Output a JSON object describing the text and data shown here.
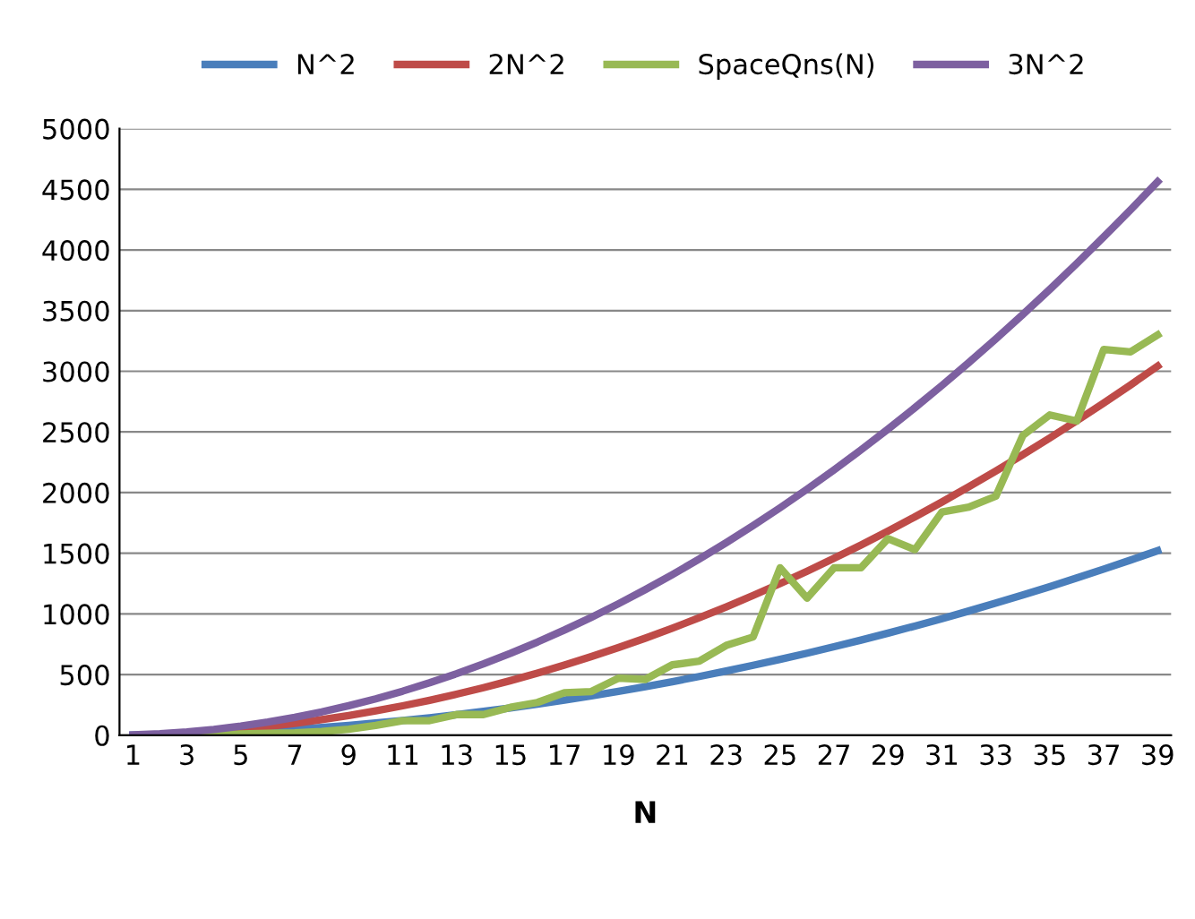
{
  "chart_data": {
    "type": "line",
    "xlabel": "N",
    "categories": [
      "1",
      null,
      "3",
      null,
      "5",
      null,
      "7",
      null,
      "9",
      null,
      "11",
      null,
      "13",
      null,
      "15",
      null,
      "17",
      null,
      "19",
      null,
      "21",
      null,
      "23",
      null,
      "25",
      null,
      "27",
      null,
      "29",
      null,
      "31",
      null,
      "33",
      null,
      "35",
      null,
      "37",
      null,
      "39"
    ],
    "series": [
      {
        "name": "N^2",
        "color": "#4a7ebb",
        "values": [
          1,
          4,
          9,
          16,
          25,
          36,
          49,
          64,
          81,
          100,
          121,
          144,
          169,
          196,
          225,
          256,
          289,
          324,
          361,
          400,
          441,
          484,
          529,
          576,
          625,
          676,
          729,
          784,
          841,
          900,
          961,
          1024,
          1089,
          1156,
          1225,
          1296,
          1369,
          1444,
          1521
        ]
      },
      {
        "name": "2N^2",
        "color": "#be4b48",
        "values": [
          null,
          null,
          null,
          32,
          50,
          72,
          98,
          128,
          162,
          200,
          242,
          288,
          338,
          392,
          450,
          512,
          578,
          648,
          722,
          800,
          882,
          968,
          1058,
          1152,
          1250,
          1352,
          1458,
          1568,
          1682,
          1800,
          1922,
          2048,
          2178,
          2312,
          2450,
          2592,
          2738,
          2888,
          3042
        ]
      },
      {
        "name": "SpaceQns(N)",
        "color": "#98b954",
        "values": [
          null,
          null,
          3,
          6,
          10,
          15,
          20,
          30,
          50,
          80,
          120,
          120,
          170,
          170,
          230,
          270,
          350,
          360,
          470,
          460,
          580,
          610,
          740,
          810,
          1380,
          1130,
          1380,
          1380,
          1620,
          1530,
          1840,
          1880,
          1970,
          2470,
          2640,
          2590,
          3180,
          3160,
          3300
        ]
      },
      {
        "name": "3N^2",
        "color": "#7d60a0",
        "values": [
          3,
          12,
          27,
          48,
          75,
          108,
          147,
          192,
          243,
          300,
          363,
          432,
          507,
          588,
          675,
          768,
          867,
          972,
          1083,
          1200,
          1323,
          1452,
          1587,
          1728,
          1875,
          2028,
          2187,
          2352,
          2523,
          2700,
          2883,
          3072,
          3267,
          3468,
          3675,
          3888,
          4107,
          4332,
          4563
        ]
      }
    ],
    "ylim": [
      0,
      5000
    ],
    "yticks": [
      0,
      500,
      1000,
      1500,
      2000,
      2500,
      3000,
      3500,
      4000,
      4500,
      5000
    ],
    "grid": "y",
    "legend": "top",
    "marker": "none",
    "line_style": "solid"
  }
}
